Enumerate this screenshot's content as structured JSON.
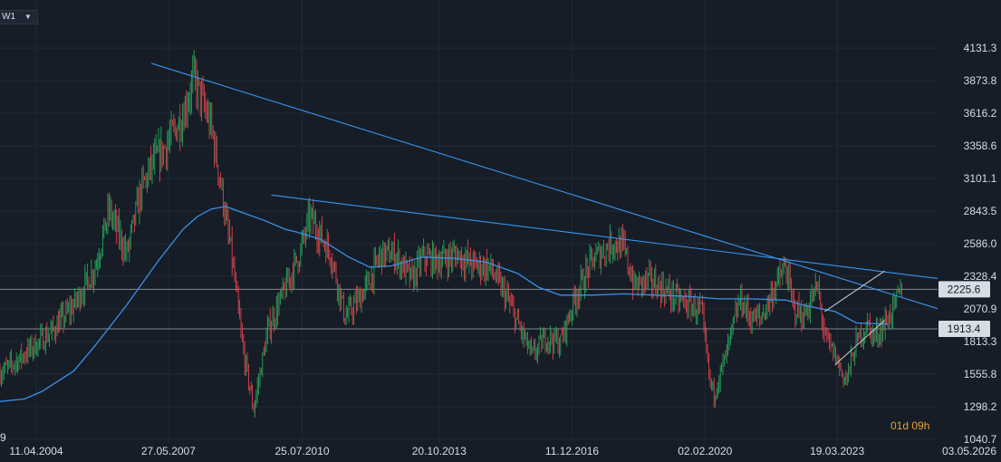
{
  "toolbar": {
    "timeframe": "W1",
    "timeframe_arrow": "chevron-down-icon"
  },
  "countdown": "01d 09h",
  "colors": {
    "background": "#161d26",
    "up_candle": "#26a65b",
    "down_candle": "#e0434c",
    "moving_average": "#3d8fe8",
    "trend_line": "#3a94f0",
    "channel": "#c8ced6",
    "horizontal_level": "#9aa4b1",
    "axis_text": "#d7dde5",
    "countdown_text": "#e8a233",
    "price_tag_bg": "#d7dde5"
  },
  "chart_data": {
    "type": "candlestick",
    "instrument_timeframe": "W1",
    "x_ticks": [
      "11.04.2004",
      "27.05.2007",
      "25.07.2010",
      "20.10.2013",
      "11.12.2016",
      "02.02.2020",
      "19.03.2023",
      "03.05.2026"
    ],
    "x_tick_first_partial": "9",
    "y_ticks": [
      4131.3,
      3873.8,
      3616.2,
      3358.6,
      3101.1,
      2843.5,
      2586.0,
      2328.4,
      2070.9,
      1813.3,
      1555.8,
      1298.2,
      1040.7
    ],
    "ylim": [
      1040.7,
      4390
    ],
    "price_tags": [
      2225.6,
      1913.4
    ],
    "price_series": {
      "dates": [
        "2003-01-01",
        "2003-09-01",
        "2004-03-01",
        "2004-09-01",
        "2005-03-01",
        "2005-09-01",
        "2006-01-01",
        "2006-06-01",
        "2006-10-01",
        "2007-01-01",
        "2007-05-01",
        "2007-10-01",
        "2008-01-01",
        "2008-06-01",
        "2008-09-01",
        "2008-10-15",
        "2008-11-15",
        "2009-03-01",
        "2009-06-01",
        "2009-10-01",
        "2010-04-01",
        "2010-07-01",
        "2010-10-01",
        "2011-04-01",
        "2011-08-01",
        "2011-12-01",
        "2012-03-01",
        "2012-06-01",
        "2012-10-01",
        "2013-03-01",
        "2013-06-01",
        "2013-10-01",
        "2014-04-01",
        "2014-08-01",
        "2015-01-01",
        "2015-06-01",
        "2015-09-01",
        "2016-01-01",
        "2016-05-01",
        "2016-09-01",
        "2017-01-01",
        "2017-06-01",
        "2017-12-01",
        "2018-03-01",
        "2018-06-01",
        "2018-10-01",
        "2019-01-01",
        "2019-06-01",
        "2019-10-01",
        "2020-01-01",
        "2020-03-15",
        "2020-04-15",
        "2020-08-01",
        "2020-12-01",
        "2021-03-01",
        "2021-06-01",
        "2021-10-01",
        "2022-01-01",
        "2022-03-01",
        "2022-06-01",
        "2022-10-01",
        "2022-12-01",
        "2023-03-01",
        "2023-06-01",
        "2023-09-01",
        "2023-12-01",
        "2024-02-01",
        "2024-05-01",
        "2024-08-01",
        "2024-10-01"
      ],
      "values": [
        1480,
        1620,
        1760,
        1900,
        2100,
        2400,
        2850,
        2500,
        3000,
        3200,
        3350,
        3600,
        3900,
        3500,
        3000,
        2700,
        2550,
        1750,
        1280,
        1900,
        2300,
        2500,
        2800,
        2500,
        2000,
        2150,
        2300,
        2500,
        2500,
        2300,
        2480,
        2450,
        2500,
        2420,
        2400,
        2150,
        1950,
        1700,
        1850,
        1800,
        2150,
        2450,
        2600,
        2550,
        2250,
        2300,
        2250,
        2150,
        2100,
        2050,
        1500,
        1400,
        1700,
        2150,
        2000,
        2000,
        2250,
        2400,
        2100,
        2000,
        2250,
        1850,
        1700,
        1500,
        1800,
        1950,
        1850,
        1950,
        2100,
        2250
      ]
    },
    "moving_average": {
      "dates": [
        "2003-01-01",
        "2003-06-01",
        "2004-01-01",
        "2004-06-01",
        "2005-03-01",
        "2005-09-01",
        "2006-06-01",
        "2007-03-01",
        "2007-10-01",
        "2008-02-01",
        "2008-06-01",
        "2008-10-01",
        "2009-03-01",
        "2009-09-01",
        "2010-03-01",
        "2010-06-01",
        "2011-01-01",
        "2011-09-01",
        "2012-03-01",
        "2012-09-01",
        "2013-06-01",
        "2014-03-01",
        "2014-12-01",
        "2015-09-01",
        "2016-03-01",
        "2016-09-01",
        "2017-06-01",
        "2018-03-01",
        "2018-12-01",
        "2019-09-01",
        "2020-06-01",
        "2021-03-01",
        "2022-01-01",
        "2022-06-01",
        "2023-03-01",
        "2023-09-01",
        "2024-06-01"
      ],
      "values": [
        1360,
        1340,
        1360,
        1420,
        1580,
        1780,
        2100,
        2450,
        2700,
        2800,
        2860,
        2880,
        2830,
        2770,
        2700,
        2680,
        2620,
        2480,
        2400,
        2410,
        2480,
        2470,
        2440,
        2350,
        2240,
        2180,
        2180,
        2190,
        2180,
        2170,
        2150,
        2150,
        2140,
        2100,
        2050,
        1960,
        1950
      ]
    },
    "trend_lines": [
      {
        "x1": "2007-01-01",
        "y1": 4010,
        "x2": "2026-01-01",
        "y2": 2030
      },
      {
        "x1": "2009-11-01",
        "y1": 2970,
        "x2": "2026-02-01",
        "y2": 2290
      }
    ],
    "channel": {
      "upper": {
        "x1": "2022-12-01",
        "y1": 2050,
        "x2": "2024-05-01",
        "y2": 2370
      },
      "lower": {
        "x1": "2023-03-01",
        "y1": 1630,
        "x2": "2024-05-01",
        "y2": 1980
      }
    },
    "horizontal_levels": [
      2225.6,
      1913.4
    ],
    "grid": true,
    "legend": "none"
  }
}
